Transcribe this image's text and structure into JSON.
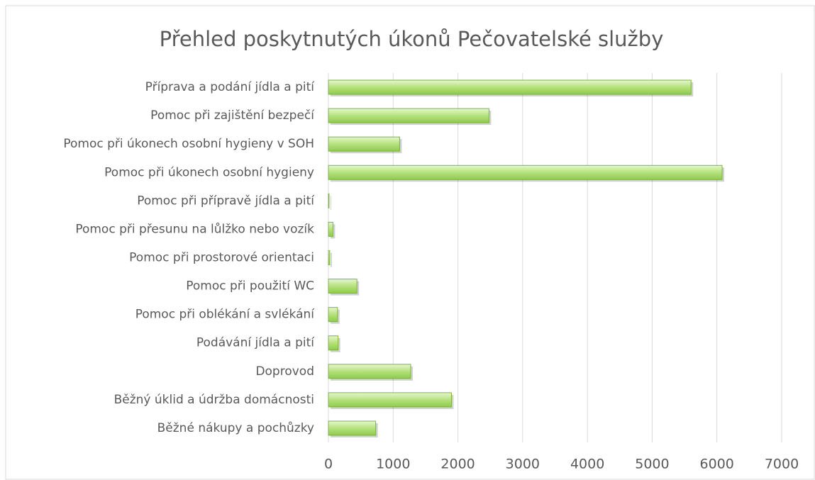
{
  "chart_data": {
    "type": "bar",
    "orientation": "horizontal",
    "title": "Přehled poskytnutých úkonů Pečovatelské služby",
    "categories": [
      "Příprava a podání jídla a pití",
      "Pomoc při zajištění bezpečí",
      "Pomoc při úkonech osobní hygieny v SOH",
      "Pomoc při úkonech osobní hygieny",
      "Pomoc při přípravě jídla a pití",
      "Pomoc při přesunu na lůlžko nebo vozík",
      "Pomoc při prostorové orientaci",
      "Pomoc při použití WC",
      "Pomoc při oblékání a svlékání",
      "Podávání jídla a pití",
      "Doprovod",
      "Běžný úklid a údržba domácnosti",
      "Běžné nákupy a pochůzky"
    ],
    "values": [
      5600,
      2480,
      1100,
      6080,
      10,
      70,
      20,
      440,
      140,
      150,
      1270,
      1900,
      730
    ],
    "color": "#a9dc6a",
    "xlim": [
      0,
      7000
    ],
    "xticks": [
      0,
      1000,
      2000,
      3000,
      4000,
      5000,
      6000,
      7000
    ],
    "grid": true
  }
}
